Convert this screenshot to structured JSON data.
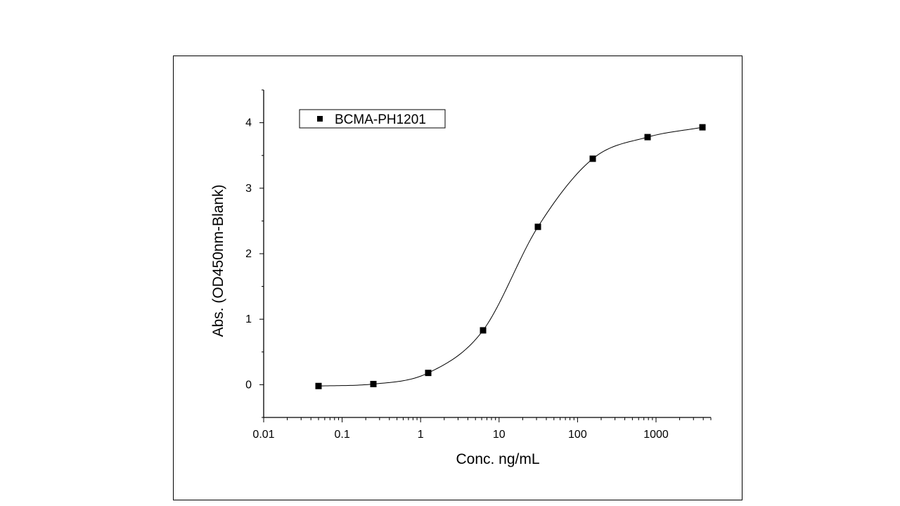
{
  "chart_data": {
    "type": "scatter",
    "title": "",
    "xlabel": "Conc. ng/mL",
    "ylabel": "Abs. (OD450nm-Blank)",
    "x_scale": "log",
    "xlim": [
      0.01,
      5000
    ],
    "ylim": [
      -0.5,
      4.5
    ],
    "x_ticks": [
      0.01,
      0.1,
      1,
      10,
      100,
      1000
    ],
    "x_tick_labels": [
      "0.01",
      "0.1",
      "1",
      "10",
      "100",
      "1000"
    ],
    "y_ticks": [
      0,
      1,
      2,
      3,
      4
    ],
    "y_tick_labels": [
      "0",
      "1",
      "2",
      "3",
      "4"
    ],
    "legend_position": "top-left",
    "grid": false,
    "series": [
      {
        "name": "BCMA-PH1201",
        "marker": "square",
        "color": "#000000",
        "x": [
          0.05,
          0.25,
          1.25,
          6.25,
          31.25,
          156.25,
          781.25,
          3906.25
        ],
        "y": [
          -0.02,
          0.01,
          0.18,
          0.83,
          2.41,
          3.45,
          3.78,
          3.93
        ],
        "fit": "sigmoid"
      }
    ]
  }
}
